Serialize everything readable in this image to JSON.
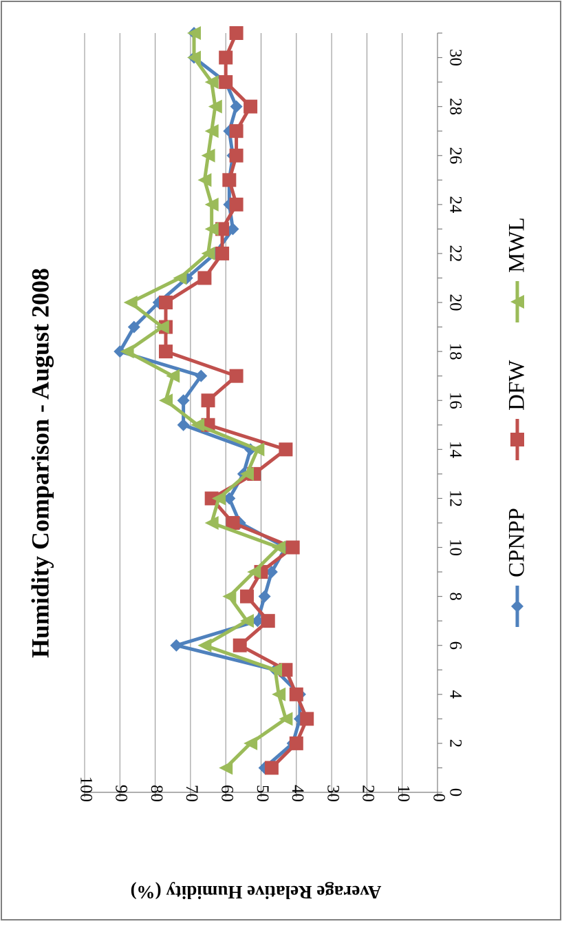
{
  "chart_data": {
    "type": "line",
    "title": "Humidity Comparison - August 2008",
    "xlabel": "",
    "ylabel": "Average Relative Humidity (%)",
    "xlim": [
      0,
      31
    ],
    "ylim": [
      0,
      100
    ],
    "x_ticks": [
      0,
      2,
      4,
      6,
      8,
      10,
      12,
      14,
      16,
      18,
      20,
      22,
      24,
      26,
      28,
      30
    ],
    "y_ticks": [
      0,
      10,
      20,
      30,
      40,
      50,
      60,
      70,
      80,
      90,
      100
    ],
    "grid": "horizontal",
    "legend_position": "bottom",
    "x": [
      1,
      2,
      3,
      4,
      5,
      6,
      7,
      8,
      9,
      10,
      11,
      12,
      13,
      14,
      15,
      16,
      17,
      18,
      19,
      20,
      21,
      22,
      23,
      24,
      25,
      26,
      27,
      28,
      29,
      30,
      31
    ],
    "series": [
      {
        "name": "CPNPP",
        "color": "#4f81bd",
        "marker": "diamond",
        "values": [
          49,
          41,
          39,
          39,
          46,
          74,
          51,
          49,
          47,
          43,
          56,
          59,
          55,
          53,
          72,
          72,
          67,
          90,
          86,
          79,
          71,
          63,
          58,
          59,
          59,
          58,
          59,
          57,
          60,
          69,
          69
        ]
      },
      {
        "name": "DFW",
        "color": "#c0504d",
        "marker": "square",
        "values": [
          47,
          40,
          37,
          40,
          43,
          56,
          48,
          54,
          50,
          41,
          58,
          64,
          52,
          43,
          65,
          65,
          57,
          77,
          77,
          77,
          66,
          61,
          61,
          57,
          59,
          57,
          57,
          53,
          60,
          60,
          57
        ]
      },
      {
        "name": "MWL",
        "color": "#9bbb59",
        "marker": "triangle",
        "values": [
          60,
          53,
          43,
          45,
          46,
          66,
          54,
          59,
          52,
          45,
          64,
          62,
          54,
          51,
          68,
          77,
          75,
          88,
          78,
          87,
          73,
          65,
          64,
          64,
          66,
          65,
          64,
          63,
          64,
          69,
          69
        ]
      }
    ]
  }
}
